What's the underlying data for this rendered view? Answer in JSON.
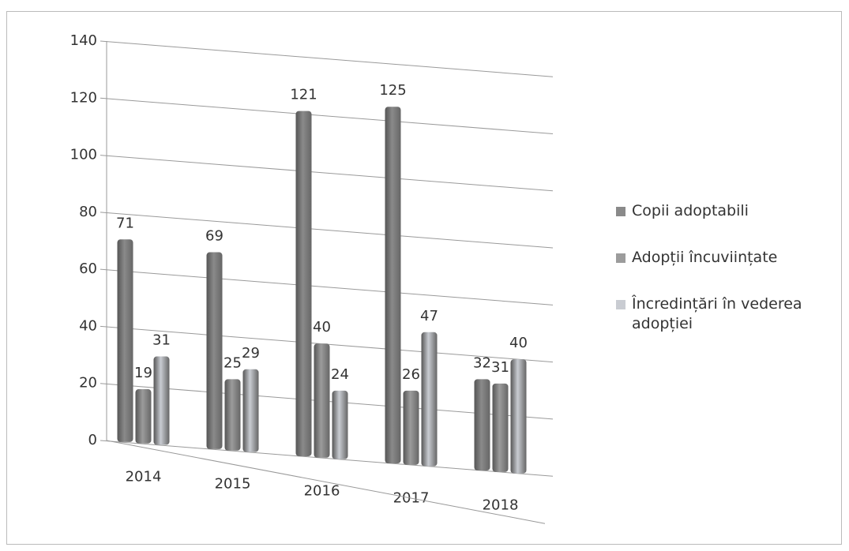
{
  "chart_data": {
    "type": "bar",
    "categories": [
      "2014",
      "2015",
      "2016",
      "2017",
      "2018"
    ],
    "series": [
      {
        "name": "Copii adoptabili",
        "color": "#8a8a8a",
        "values": [
          71,
          69,
          121,
          125,
          32
        ]
      },
      {
        "name": "Adopții încuviințate",
        "color": "#9c9c9c",
        "values": [
          19,
          25,
          40,
          26,
          31
        ]
      },
      {
        "name": "Încredințări în vederea adopției",
        "color": "#c9ccd2",
        "values": [
          31,
          29,
          24,
          47,
          40
        ]
      }
    ],
    "ylim": [
      0,
      140
    ],
    "yticks": [
      0,
      20,
      40,
      60,
      80,
      100,
      120,
      140
    ],
    "grid": true,
    "legend": "right"
  }
}
